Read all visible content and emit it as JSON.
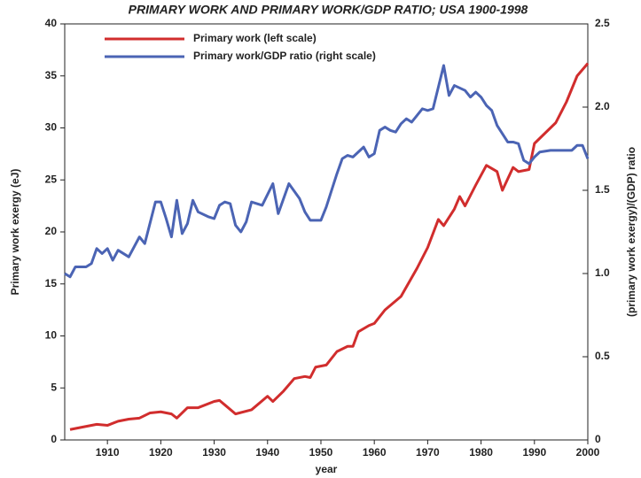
{
  "chart_data": {
    "type": "line",
    "title": "PRIMARY WORK AND PRIMARY WORK/GDP RATIO; USA 1900-1998",
    "x_label": "year",
    "y_label": "Primary work exergy (eJ)",
    "y2_label": "(primary work exergy)/(GDP) ratio",
    "xlim": [
      1902,
      2000
    ],
    "xticks": [
      1910,
      1920,
      1930,
      1940,
      1950,
      1960,
      1970,
      1980,
      1990,
      2000
    ],
    "ylim": [
      0,
      40
    ],
    "yticks": [
      0,
      5,
      10,
      15,
      20,
      25,
      30,
      35,
      40
    ],
    "y2lim": [
      0,
      2.5
    ],
    "y2ticks": [
      0,
      0.5,
      {
        "value": 1,
        "label": "1.0"
      },
      1.5,
      {
        "value": 2,
        "label": "2.0"
      },
      2.5
    ],
    "legend": "upper-left",
    "series": [
      {
        "name": "Primary work (left scale)",
        "color": "#d12d2d",
        "x": [
          1903,
          1905,
          1908,
          1910,
          1912,
          1914,
          1916,
          1918,
          1920,
          1922,
          1923,
          1925,
          1927,
          1930,
          1931,
          1934,
          1937,
          1940,
          1941,
          1943,
          1945,
          1947,
          1948,
          1949,
          1951,
          1953,
          1955,
          1956,
          1957,
          1959,
          1960,
          1962,
          1965,
          1968,
          1970,
          1972,
          1973,
          1975,
          1976,
          1977,
          1979,
          1981,
          1983,
          1984,
          1986,
          1987,
          1989,
          1990,
          1992,
          1994,
          1996,
          1998,
          2000
        ],
        "values": [
          1.0,
          1.2,
          1.5,
          1.4,
          1.8,
          2.0,
          2.1,
          2.6,
          2.7,
          2.5,
          2.1,
          3.1,
          3.1,
          3.7,
          3.8,
          2.5,
          2.9,
          4.2,
          3.7,
          4.7,
          5.9,
          6.1,
          6.0,
          7.0,
          7.2,
          8.5,
          9.0,
          9.0,
          10.4,
          11.0,
          11.2,
          12.5,
          13.8,
          16.5,
          18.5,
          21.2,
          20.6,
          22.2,
          23.4,
          22.5,
          24.5,
          26.4,
          25.8,
          24.0,
          26.2,
          25.8,
          26.0,
          28.5,
          29.5,
          30.5,
          32.5,
          35.0,
          36.2
        ]
      },
      {
        "name": "Primary work/GDP ratio (right scale)",
        "color": "#4b64b4",
        "axis": "y2",
        "x": [
          1902,
          1903,
          1904,
          1906,
          1907,
          1908,
          1909,
          1910,
          1911,
          1912,
          1914,
          1916,
          1917,
          1919,
          1920,
          1921,
          1922,
          1923,
          1924,
          1925,
          1926,
          1927,
          1929,
          1930,
          1931,
          1932,
          1933,
          1934,
          1935,
          1936,
          1937,
          1939,
          1941,
          1942,
          1944,
          1946,
          1947,
          1948,
          1950,
          1951,
          1953,
          1954,
          1955,
          1956,
          1957,
          1958,
          1959,
          1960,
          1961,
          1962,
          1963,
          1964,
          1965,
          1966,
          1967,
          1968,
          1969,
          1970,
          1971,
          1972,
          1973,
          1974,
          1975,
          1977,
          1978,
          1979,
          1980,
          1981,
          1982,
          1983,
          1985,
          1986,
          1987,
          1988,
          1989,
          1990,
          1991,
          1993,
          1994,
          1997,
          1998,
          1999,
          2000
        ],
        "values": [
          1.0,
          0.98,
          1.04,
          1.04,
          1.06,
          1.15,
          1.12,
          1.15,
          1.08,
          1.14,
          1.1,
          1.22,
          1.18,
          1.43,
          1.43,
          1.33,
          1.22,
          1.44,
          1.24,
          1.3,
          1.44,
          1.37,
          1.34,
          1.33,
          1.41,
          1.43,
          1.42,
          1.29,
          1.25,
          1.31,
          1.43,
          1.41,
          1.54,
          1.36,
          1.54,
          1.45,
          1.37,
          1.32,
          1.32,
          1.4,
          1.6,
          1.69,
          1.71,
          1.7,
          1.73,
          1.76,
          1.7,
          1.72,
          1.86,
          1.88,
          1.86,
          1.85,
          1.9,
          1.93,
          1.91,
          1.95,
          1.99,
          1.98,
          1.99,
          2.12,
          2.25,
          2.07,
          2.13,
          2.1,
          2.06,
          2.09,
          2.06,
          2.01,
          1.98,
          1.89,
          1.79,
          1.79,
          1.78,
          1.68,
          1.66,
          1.7,
          1.73,
          1.74,
          1.74,
          1.74,
          1.77,
          1.77,
          1.69
        ]
      }
    ]
  }
}
